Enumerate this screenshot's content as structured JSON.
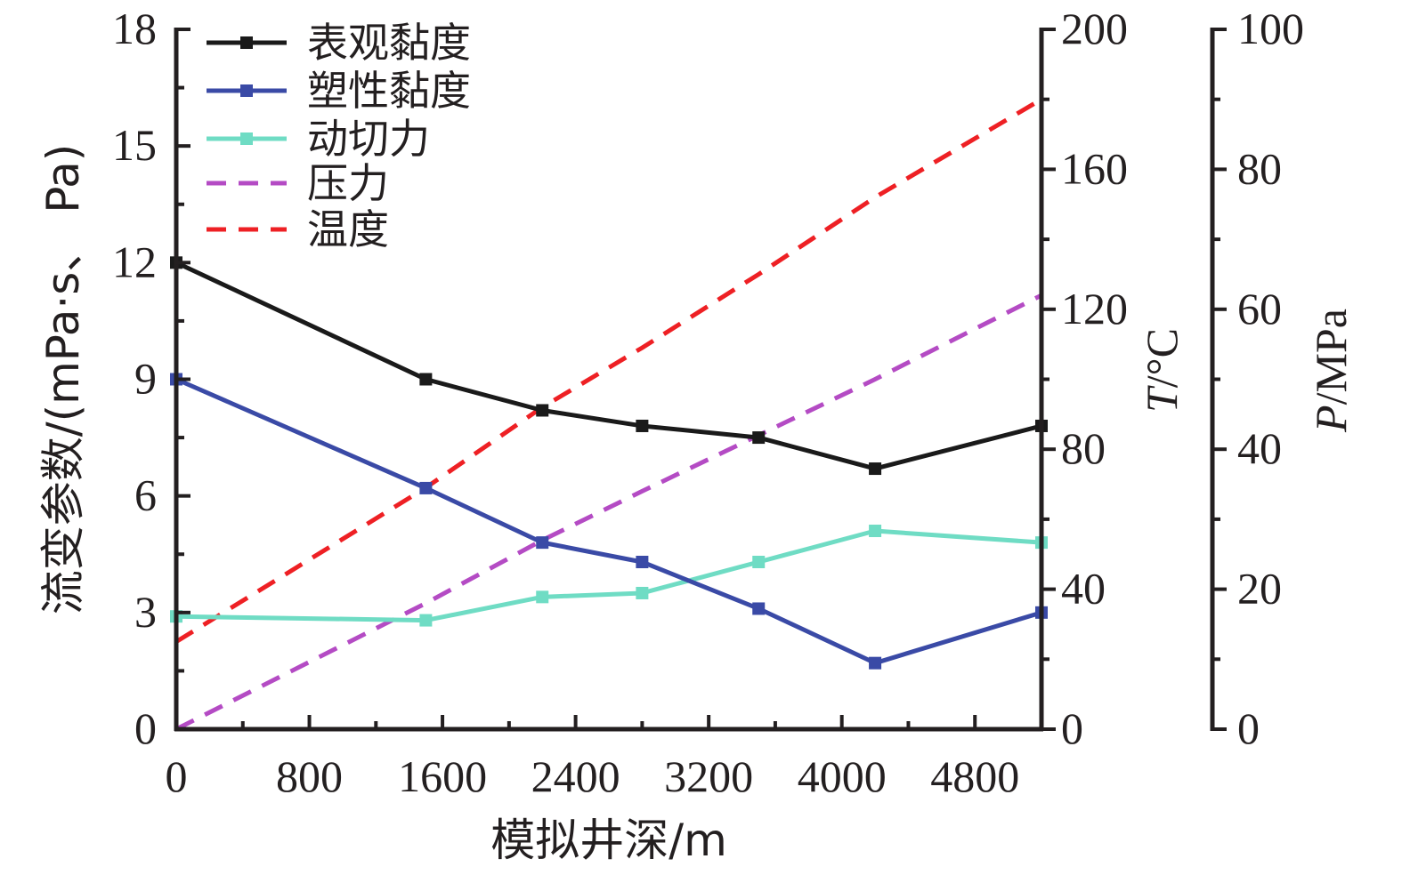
{
  "chart_data": {
    "type": "line",
    "xlabel": "模拟井深/m",
    "ylabel": "流变参数/(mPa·s、 Pa)",
    "y2label_italic": "T",
    "y2label_rest": "/°C",
    "y3label_italic": "P",
    "y3label_rest": "/MPa",
    "xlim": [
      0,
      5200
    ],
    "ylim": [
      0,
      18
    ],
    "y2lim": [
      0,
      200
    ],
    "y3lim": [
      0,
      100
    ],
    "xticks": [
      0,
      800,
      1600,
      2400,
      3200,
      4000,
      4800
    ],
    "yticks": [
      0,
      3,
      6,
      9,
      12,
      15,
      18
    ],
    "y2ticks": [
      0,
      40,
      80,
      120,
      160,
      200
    ],
    "y3ticks": [
      0,
      20,
      40,
      60,
      80,
      100
    ],
    "series": [
      {
        "name": "表观黏度",
        "axis": "left",
        "style": "solid",
        "color": "#1a1a1a",
        "x": [
          0,
          1500,
          2200,
          2800,
          3500,
          4200,
          5200
        ],
        "y": [
          12.0,
          9.0,
          8.2,
          7.8,
          7.5,
          6.7,
          7.8
        ]
      },
      {
        "name": "塑性黏度",
        "axis": "left",
        "style": "solid",
        "color": "#3a4aa6",
        "x": [
          0,
          1500,
          2200,
          2800,
          3500,
          4200,
          5200
        ],
        "y": [
          9.0,
          6.2,
          4.8,
          4.3,
          3.1,
          1.7,
          3.0
        ]
      },
      {
        "name": "动切力",
        "axis": "left",
        "style": "solid",
        "color": "#6fdcc4",
        "x": [
          0,
          1500,
          2200,
          2800,
          3500,
          4200,
          5200
        ],
        "y": [
          2.9,
          2.8,
          3.4,
          3.5,
          4.3,
          5.1,
          4.8
        ]
      },
      {
        "name": "压力",
        "axis": "right-outer",
        "style": "dashed",
        "color": "#b44bc4",
        "x": [
          0,
          1500,
          2200,
          2800,
          3500,
          4200,
          5200
        ],
        "y": [
          0,
          18,
          27,
          34,
          42,
          50,
          62
        ]
      },
      {
        "name": "温度",
        "axis": "right-inner",
        "style": "dashed",
        "color": "#ee2024",
        "x": [
          0,
          1500,
          2200,
          2800,
          3500,
          4200,
          5200
        ],
        "y": [
          25,
          69,
          92,
          109,
          130,
          152,
          180
        ]
      }
    ],
    "legend": "top-left",
    "grid": false
  }
}
